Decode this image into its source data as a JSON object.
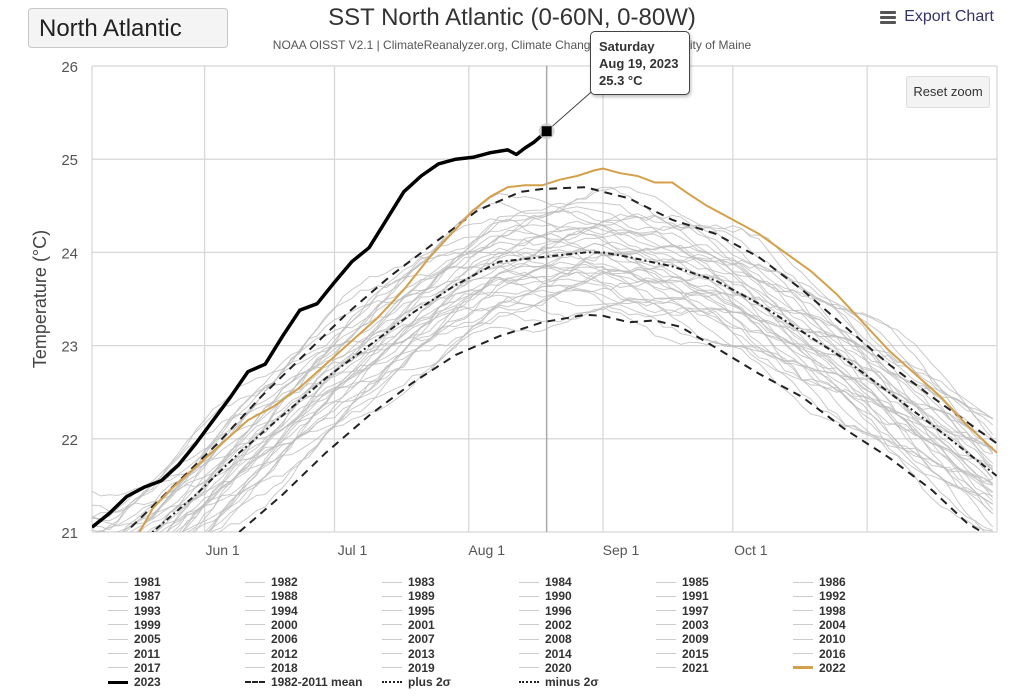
{
  "header": {
    "region_selector": "North Atlantic",
    "title": "SST North Atlantic (0-60N, 0-80W)",
    "subtitle": "NOAA OISST V2.1 | ClimateReanalyzer.org, Climate Change Institute, University of Maine",
    "export_label": "Export Chart",
    "export_icon": "hamburger-menu-icon"
  },
  "reset_zoom_label": "Reset zoom",
  "tooltip": {
    "day": "Saturday",
    "date": "Aug 19, 2023",
    "value": "25.3 °C"
  },
  "colors": {
    "year_2023": "#000000",
    "year_2022": "#d4a04a",
    "other_years": "#bdbdbd",
    "stats": "#222222",
    "grid": "#d8d8d8"
  },
  "chart_data": {
    "type": "line",
    "title": "SST North Atlantic (0-60N, 0-80W)",
    "xlabel": "",
    "ylabel": "Temperature (°C)",
    "ylim": [
      21,
      26
    ],
    "yticks": [
      21,
      22,
      23,
      24,
      25,
      26
    ],
    "xlim_day_of_year": [
      126,
      335
    ],
    "xticks": [
      {
        "label": "Jun 1",
        "day": 152
      },
      {
        "label": "Jul 1",
        "day": 182
      },
      {
        "label": "Aug 1",
        "day": 213
      },
      {
        "label": "Sep 1",
        "day": 244
      },
      {
        "label": "Oct 1",
        "day": 274
      }
    ],
    "x_gridline_days": [
      152,
      182,
      213,
      244,
      274,
      305
    ],
    "grid": true,
    "crosshair_day": 231,
    "series": [
      {
        "name": "2023",
        "style": "solid-bold",
        "color": "#000000",
        "x": [
          126,
          130,
          134,
          138,
          142,
          146,
          150,
          154,
          158,
          162,
          166,
          170,
          174,
          178,
          182,
          186,
          190,
          194,
          198,
          202,
          206,
          210,
          214,
          218,
          222,
          224,
          226,
          228,
          231
        ],
        "y": [
          21.05,
          21.2,
          21.38,
          21.48,
          21.55,
          21.72,
          21.95,
          22.2,
          22.45,
          22.72,
          22.8,
          23.1,
          23.38,
          23.45,
          23.68,
          23.9,
          24.05,
          24.35,
          24.65,
          24.82,
          24.95,
          25.0,
          25.02,
          25.07,
          25.1,
          25.05,
          25.12,
          25.18,
          25.3
        ]
      },
      {
        "name": "2022",
        "style": "solid",
        "color": "#d4a04a",
        "x": [
          137,
          140,
          144,
          150,
          156,
          162,
          168,
          174,
          180,
          186,
          192,
          198,
          204,
          210,
          214,
          218,
          222,
          226,
          230,
          234,
          238,
          242,
          244,
          248,
          252,
          256,
          260,
          264,
          268,
          274,
          280,
          286,
          292,
          298,
          304,
          310,
          316,
          322,
          328,
          335
        ],
        "y": [
          21.0,
          21.25,
          21.45,
          21.7,
          21.95,
          22.2,
          22.35,
          22.55,
          22.8,
          23.05,
          23.3,
          23.6,
          23.95,
          24.25,
          24.45,
          24.6,
          24.7,
          24.72,
          24.72,
          24.78,
          24.82,
          24.88,
          24.9,
          24.85,
          24.82,
          24.75,
          24.75,
          24.62,
          24.5,
          24.35,
          24.2,
          24.0,
          23.8,
          23.55,
          23.25,
          22.95,
          22.7,
          22.45,
          22.15,
          21.85
        ]
      },
      {
        "name": "1982-2011 mean",
        "style": "dash-dot",
        "color": "#222222",
        "x": [
          130,
          140,
          150,
          160,
          170,
          180,
          190,
          200,
          210,
          220,
          230,
          240,
          244,
          250,
          260,
          270,
          280,
          290,
          300,
          310,
          320,
          335
        ],
        "y": [
          20.7,
          21.0,
          21.4,
          21.85,
          22.25,
          22.65,
          23.0,
          23.35,
          23.65,
          23.9,
          23.95,
          24.0,
          24.0,
          23.95,
          23.85,
          23.7,
          23.45,
          23.15,
          22.85,
          22.5,
          22.15,
          21.6
        ]
      },
      {
        "name": "plus 2σ",
        "style": "dashed",
        "color": "#222222",
        "x": [
          135,
          145,
          155,
          165,
          175,
          185,
          195,
          205,
          215,
          225,
          230,
          240,
          244,
          250,
          260,
          270,
          280,
          290,
          300,
          310,
          320,
          335
        ],
        "y": [
          21.05,
          21.5,
          21.95,
          22.45,
          22.9,
          23.35,
          23.75,
          24.1,
          24.45,
          24.65,
          24.68,
          24.7,
          24.65,
          24.58,
          24.35,
          24.2,
          23.95,
          23.6,
          23.2,
          22.8,
          22.45,
          21.95
        ]
      },
      {
        "name": "minus 2σ",
        "style": "dashed",
        "color": "#222222",
        "x": [
          160,
          170,
          180,
          190,
          200,
          210,
          220,
          230,
          240,
          244,
          250,
          256,
          262,
          270,
          280,
          290,
          300,
          310,
          320,
          328,
          335
        ],
        "y": [
          21.0,
          21.4,
          21.85,
          22.25,
          22.6,
          22.9,
          23.1,
          23.25,
          23.33,
          23.32,
          23.25,
          23.27,
          23.2,
          22.98,
          22.7,
          22.45,
          22.1,
          21.8,
          21.45,
          21.1,
          20.9
        ]
      },
      {
        "name": "1981-2021 (grey)",
        "style": "thin-solid",
        "color": "#bdbdbd",
        "band_center": "mean",
        "band_spread": 0.55,
        "count": 41
      }
    ],
    "legend": {
      "placement": "bottom",
      "items": [
        "1981",
        "1982",
        "1983",
        "1984",
        "1985",
        "1986",
        "1987",
        "1988",
        "1989",
        "1990",
        "1991",
        "1992",
        "1993",
        "1994",
        "1995",
        "1996",
        "1997",
        "1998",
        "1999",
        "2000",
        "2001",
        "2002",
        "2003",
        "2004",
        "2005",
        "2006",
        "2007",
        "2008",
        "2009",
        "2010",
        "2011",
        "2012",
        "2013",
        "2014",
        "2015",
        "2016",
        "2017",
        "2018",
        "2019",
        "2020",
        "2021",
        "2022",
        "2023",
        "1982-2011 mean",
        "plus 2σ",
        "minus 2σ"
      ],
      "styles": {
        "2022": "orange",
        "2023": "bold-black",
        "1982-2011 mean": "dash",
        "plus 2σ": "dash-dot",
        "minus 2σ": "dash-dot"
      }
    }
  }
}
